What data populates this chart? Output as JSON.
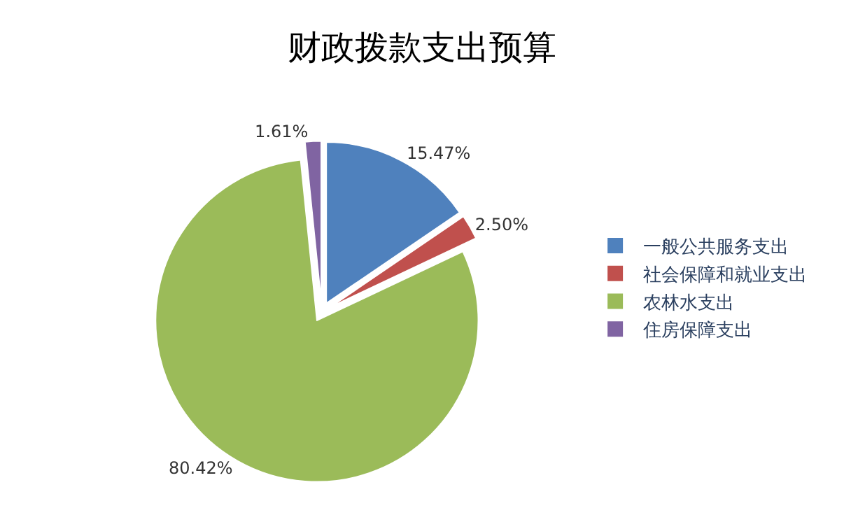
{
  "chart_data": {
    "type": "pie",
    "title": "财政拨款支出预算",
    "categories": [
      "一般公共服务支出",
      "社会保障和就业支出",
      "农林水支出",
      "住房保障支出"
    ],
    "values": [
      15.47,
      2.5,
      80.42,
      1.61
    ],
    "colors": [
      "#4f81bd",
      "#c0504d",
      "#9bbb59",
      "#8064a2"
    ],
    "value_labels": [
      "15.47%",
      "2.50%",
      "80.42%",
      "1.61%"
    ],
    "legend": "right"
  }
}
